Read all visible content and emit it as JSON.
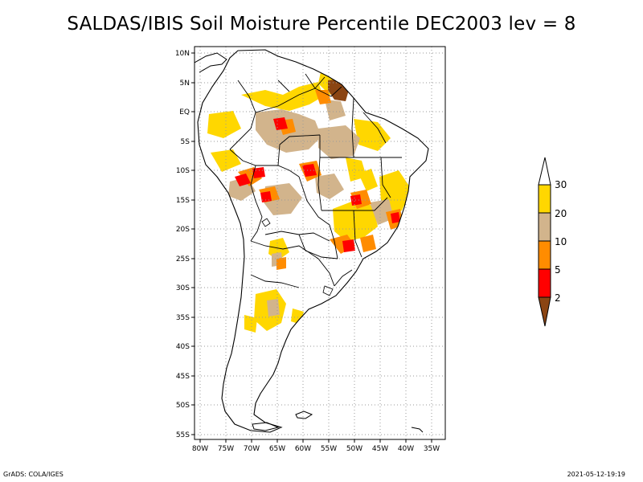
{
  "title": "SALDAS/IBIS Soil Moisture Percentile DEC2003 lev = 8",
  "footer": {
    "left": "GrADS: COLA/IGES",
    "right": "2021-05-12-19:19"
  },
  "map": {
    "lat_labels": [
      "10N",
      "5N",
      "EQ",
      "5S",
      "10S",
      "15S",
      "20S",
      "25S",
      "30S",
      "35S",
      "40S",
      "45S",
      "50S",
      "55S"
    ],
    "lon_labels": [
      "80W",
      "75W",
      "70W",
      "65W",
      "60W",
      "55W",
      "50W",
      "45W",
      "40W",
      "35W"
    ],
    "lat_range": [
      -56,
      11
    ],
    "lon_range": [
      -81,
      -33
    ],
    "grid": true
  },
  "legend": {
    "labels": [
      "2",
      "5",
      "10",
      "20",
      "30"
    ],
    "colors": {
      "below_2": "#8b4513",
      "2_5": "#ff0000",
      "5_10": "#ff8c00",
      "10_20": "#d2b48c",
      "20_30": "#ffd700",
      "above_30": "#ffffff"
    }
  }
}
